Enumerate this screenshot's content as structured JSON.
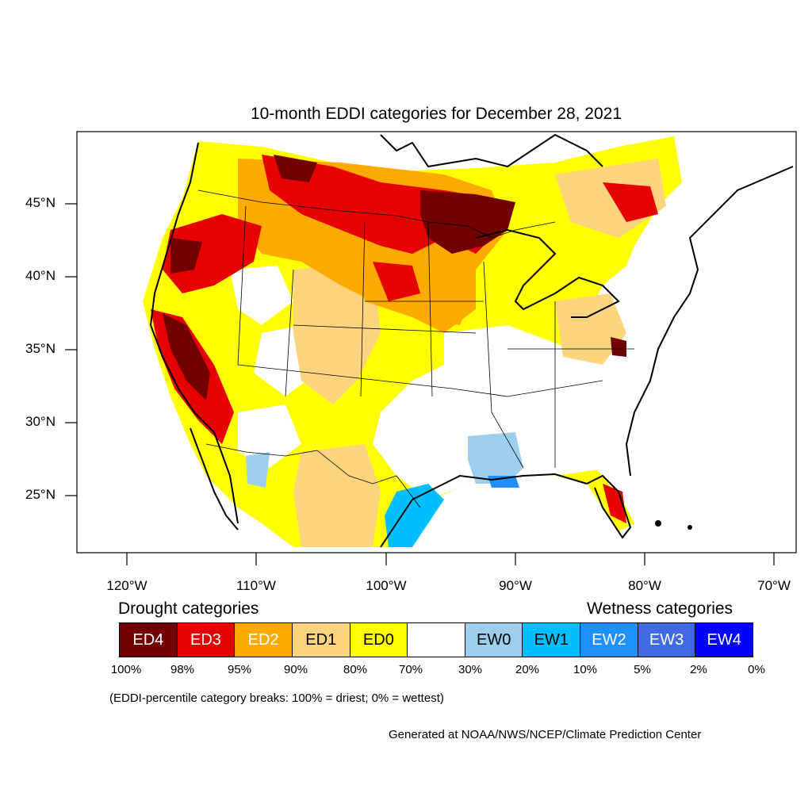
{
  "title": "10-month EDDI categories for December 28, 2021",
  "lat_labels": [
    "45°N",
    "40°N",
    "35°N",
    "30°N",
    "25°N"
  ],
  "lon_labels": [
    "120°W",
    "110°W",
    "100°W",
    "90°W",
    "80°W",
    "70°W"
  ],
  "legend": {
    "drought_heading": "Drought categories",
    "wetness_heading": "Wetness categories",
    "categories": [
      {
        "label": "ED4",
        "color": "#730000",
        "text_color": "#ffffff"
      },
      {
        "label": "ED3",
        "color": "#e60000",
        "text_color": "#ffffff"
      },
      {
        "label": "ED2",
        "color": "#ffaa00",
        "text_color": "#ffffff"
      },
      {
        "label": "ED1",
        "color": "#fcd37f",
        "text_color": "#000000"
      },
      {
        "label": "ED0",
        "color": "#ffff00",
        "text_color": "#000000"
      },
      {
        "label": "",
        "color": "#ffffff",
        "text_color": "#000000"
      },
      {
        "label": "EW0",
        "color": "#9ccfee",
        "text_color": "#000000"
      },
      {
        "label": "EW1",
        "color": "#00bfff",
        "text_color": "#000000"
      },
      {
        "label": "EW2",
        "color": "#1e90ff",
        "text_color": "#ffffff"
      },
      {
        "label": "EW3",
        "color": "#4169e1",
        "text_color": "#ffffff"
      },
      {
        "label": "EW4",
        "color": "#0000ff",
        "text_color": "#ffffff"
      }
    ],
    "tick_labels": [
      "100%",
      "98%",
      "95%",
      "90%",
      "80%",
      "70%",
      "30%",
      "20%",
      "10%",
      "5%",
      "2%",
      "0%"
    ]
  },
  "breaks_note": "(EDDI-percentile category breaks: 100% = driest; 0% = wettest)",
  "credit": "Generated at NOAA/NWS/NCEP/Climate Prediction Center"
}
